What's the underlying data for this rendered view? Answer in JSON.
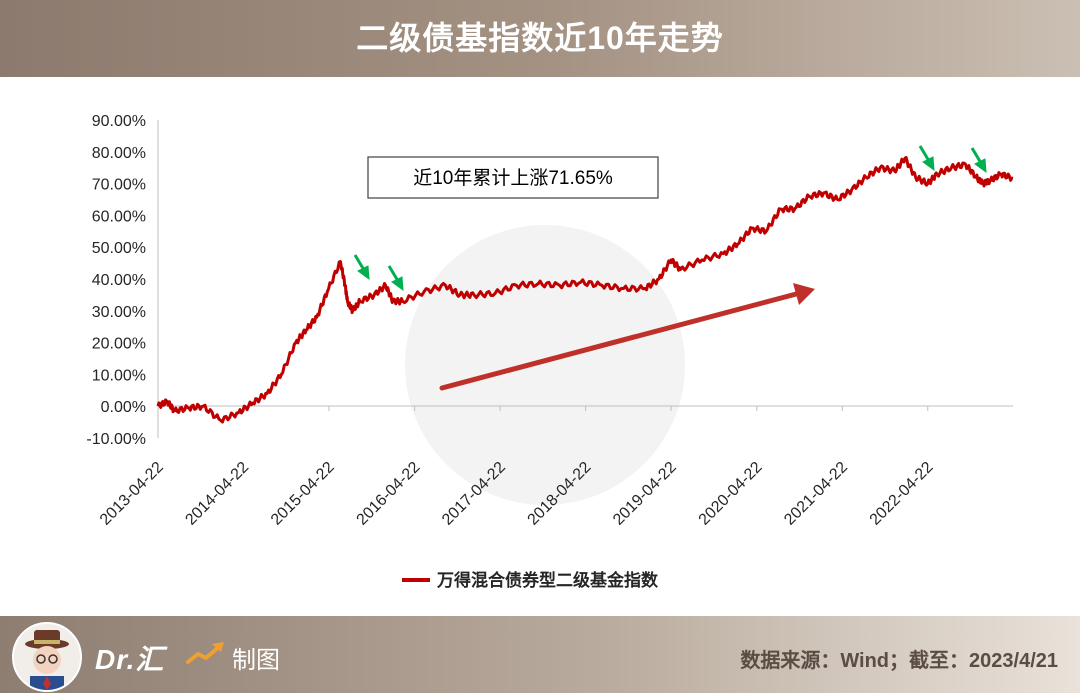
{
  "header": {
    "title": "二级债基指数近10年走势"
  },
  "footer": {
    "brand": "Dr.汇",
    "made_label": "制图",
    "source": "数据来源：Wind；截至：2023/4/21"
  },
  "colors": {
    "line": "#c00000",
    "arrow_green": "#00b050",
    "trend_arrow": "#c0302a"
  },
  "chart_data": {
    "type": "line",
    "title": "",
    "xlabel": "",
    "ylabel": "",
    "x_ticks": [
      "2013-04-22",
      "2014-04-22",
      "2015-04-22",
      "2016-04-22",
      "2017-04-22",
      "2018-04-22",
      "2019-04-22",
      "2020-04-22",
      "2021-04-22",
      "2022-04-22"
    ],
    "y_ticks": [
      "90.00%",
      "80.00%",
      "70.00%",
      "60.00%",
      "50.00%",
      "40.00%",
      "30.00%",
      "20.00%",
      "10.00%",
      "0.00%",
      "-10.00%"
    ],
    "ylim": [
      -10,
      90
    ],
    "xlim": [
      "2013-04-22",
      "2023-04-21"
    ],
    "grid": false,
    "legend_position": "bottom",
    "annotation": "近10年累计上涨71.65%",
    "series": [
      {
        "name": "万得混合债券型二级基金指数",
        "x": [
          "2013-04-22",
          "2013-06-01",
          "2013-07-01",
          "2013-09-01",
          "2013-11-01",
          "2014-01-15",
          "2014-04-01",
          "2014-06-01",
          "2014-08-01",
          "2014-10-01",
          "2014-12-01",
          "2015-01-15",
          "2015-03-01",
          "2015-04-15",
          "2015-06-10",
          "2015-06-30",
          "2015-07-10",
          "2015-08-01",
          "2015-09-01",
          "2015-11-01",
          "2015-12-20",
          "2016-01-20",
          "2016-03-01",
          "2016-06-01",
          "2016-09-01",
          "2016-11-01",
          "2017-01-01",
          "2017-04-01",
          "2017-07-01",
          "2017-10-01",
          "2018-01-01",
          "2018-04-01",
          "2018-07-01",
          "2018-10-01",
          "2019-01-01",
          "2019-03-01",
          "2019-04-22",
          "2019-06-01",
          "2019-09-01",
          "2019-12-01",
          "2020-02-01",
          "2020-04-01",
          "2020-06-01",
          "2020-08-01",
          "2020-10-01",
          "2020-12-01",
          "2021-02-01",
          "2021-04-01",
          "2021-06-01",
          "2021-08-01",
          "2021-10-01",
          "2021-12-01",
          "2022-01-15",
          "2022-03-01",
          "2022-04-22",
          "2022-06-01",
          "2022-08-01",
          "2022-10-01",
          "2022-11-15",
          "2022-12-15",
          "2023-01-15",
          "2023-03-01",
          "2023-04-21"
        ],
        "values": [
          0.0,
          1.5,
          -1.5,
          -0.5,
          0.0,
          -4.5,
          -2.0,
          1.0,
          4.0,
          10.0,
          20.0,
          24.0,
          28.0,
          36.0,
          45.5,
          38.0,
          33.0,
          30.0,
          33.0,
          35.0,
          38.0,
          33.0,
          33.0,
          36.0,
          38.0,
          35.0,
          35.0,
          35.5,
          38.0,
          38.5,
          38.0,
          39.0,
          38.0,
          37.0,
          37.0,
          40.0,
          46.0,
          43.0,
          46.0,
          48.0,
          51.0,
          56.0,
          55.0,
          62.0,
          62.0,
          66.0,
          67.0,
          65.0,
          68.0,
          72.0,
          75.0,
          74.0,
          78.0,
          72.0,
          70.0,
          73.0,
          75.0,
          76.0,
          72.0,
          70.0,
          71.0,
          73.0,
          71.65
        ]
      }
    ]
  }
}
